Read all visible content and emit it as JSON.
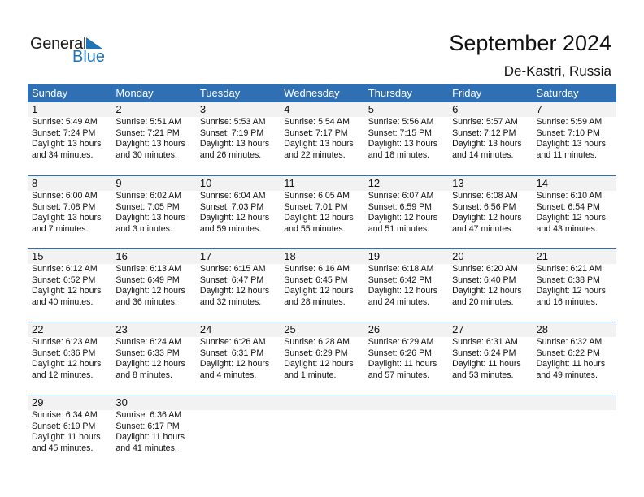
{
  "logo": {
    "line1": "General",
    "line2": "Blue"
  },
  "header": {
    "title": "September 2024",
    "location": "De-Kastri, Russia"
  },
  "colors": {
    "accent": "#2e70b3",
    "band": "#f2f2f2"
  },
  "weekdays": [
    "Sunday",
    "Monday",
    "Tuesday",
    "Wednesday",
    "Thursday",
    "Friday",
    "Saturday"
  ],
  "weeks": [
    [
      {
        "day": "1",
        "sunrise": "Sunrise: 5:49 AM",
        "sunset": "Sunset: 7:24 PM",
        "daylight1": "Daylight: 13 hours",
        "daylight2": "and 34 minutes."
      },
      {
        "day": "2",
        "sunrise": "Sunrise: 5:51 AM",
        "sunset": "Sunset: 7:21 PM",
        "daylight1": "Daylight: 13 hours",
        "daylight2": "and 30 minutes."
      },
      {
        "day": "3",
        "sunrise": "Sunrise: 5:53 AM",
        "sunset": "Sunset: 7:19 PM",
        "daylight1": "Daylight: 13 hours",
        "daylight2": "and 26 minutes."
      },
      {
        "day": "4",
        "sunrise": "Sunrise: 5:54 AM",
        "sunset": "Sunset: 7:17 PM",
        "daylight1": "Daylight: 13 hours",
        "daylight2": "and 22 minutes."
      },
      {
        "day": "5",
        "sunrise": "Sunrise: 5:56 AM",
        "sunset": "Sunset: 7:15 PM",
        "daylight1": "Daylight: 13 hours",
        "daylight2": "and 18 minutes."
      },
      {
        "day": "6",
        "sunrise": "Sunrise: 5:57 AM",
        "sunset": "Sunset: 7:12 PM",
        "daylight1": "Daylight: 13 hours",
        "daylight2": "and 14 minutes."
      },
      {
        "day": "7",
        "sunrise": "Sunrise: 5:59 AM",
        "sunset": "Sunset: 7:10 PM",
        "daylight1": "Daylight: 13 hours",
        "daylight2": "and 11 minutes."
      }
    ],
    [
      {
        "day": "8",
        "sunrise": "Sunrise: 6:00 AM",
        "sunset": "Sunset: 7:08 PM",
        "daylight1": "Daylight: 13 hours",
        "daylight2": "and 7 minutes."
      },
      {
        "day": "9",
        "sunrise": "Sunrise: 6:02 AM",
        "sunset": "Sunset: 7:05 PM",
        "daylight1": "Daylight: 13 hours",
        "daylight2": "and 3 minutes."
      },
      {
        "day": "10",
        "sunrise": "Sunrise: 6:04 AM",
        "sunset": "Sunset: 7:03 PM",
        "daylight1": "Daylight: 12 hours",
        "daylight2": "and 59 minutes."
      },
      {
        "day": "11",
        "sunrise": "Sunrise: 6:05 AM",
        "sunset": "Sunset: 7:01 PM",
        "daylight1": "Daylight: 12 hours",
        "daylight2": "and 55 minutes."
      },
      {
        "day": "12",
        "sunrise": "Sunrise: 6:07 AM",
        "sunset": "Sunset: 6:59 PM",
        "daylight1": "Daylight: 12 hours",
        "daylight2": "and 51 minutes."
      },
      {
        "day": "13",
        "sunrise": "Sunrise: 6:08 AM",
        "sunset": "Sunset: 6:56 PM",
        "daylight1": "Daylight: 12 hours",
        "daylight2": "and 47 minutes."
      },
      {
        "day": "14",
        "sunrise": "Sunrise: 6:10 AM",
        "sunset": "Sunset: 6:54 PM",
        "daylight1": "Daylight: 12 hours",
        "daylight2": "and 43 minutes."
      }
    ],
    [
      {
        "day": "15",
        "sunrise": "Sunrise: 6:12 AM",
        "sunset": "Sunset: 6:52 PM",
        "daylight1": "Daylight: 12 hours",
        "daylight2": "and 40 minutes."
      },
      {
        "day": "16",
        "sunrise": "Sunrise: 6:13 AM",
        "sunset": "Sunset: 6:49 PM",
        "daylight1": "Daylight: 12 hours",
        "daylight2": "and 36 minutes."
      },
      {
        "day": "17",
        "sunrise": "Sunrise: 6:15 AM",
        "sunset": "Sunset: 6:47 PM",
        "daylight1": "Daylight: 12 hours",
        "daylight2": "and 32 minutes."
      },
      {
        "day": "18",
        "sunrise": "Sunrise: 6:16 AM",
        "sunset": "Sunset: 6:45 PM",
        "daylight1": "Daylight: 12 hours",
        "daylight2": "and 28 minutes."
      },
      {
        "day": "19",
        "sunrise": "Sunrise: 6:18 AM",
        "sunset": "Sunset: 6:42 PM",
        "daylight1": "Daylight: 12 hours",
        "daylight2": "and 24 minutes."
      },
      {
        "day": "20",
        "sunrise": "Sunrise: 6:20 AM",
        "sunset": "Sunset: 6:40 PM",
        "daylight1": "Daylight: 12 hours",
        "daylight2": "and 20 minutes."
      },
      {
        "day": "21",
        "sunrise": "Sunrise: 6:21 AM",
        "sunset": "Sunset: 6:38 PM",
        "daylight1": "Daylight: 12 hours",
        "daylight2": "and 16 minutes."
      }
    ],
    [
      {
        "day": "22",
        "sunrise": "Sunrise: 6:23 AM",
        "sunset": "Sunset: 6:36 PM",
        "daylight1": "Daylight: 12 hours",
        "daylight2": "and 12 minutes."
      },
      {
        "day": "23",
        "sunrise": "Sunrise: 6:24 AM",
        "sunset": "Sunset: 6:33 PM",
        "daylight1": "Daylight: 12 hours",
        "daylight2": "and 8 minutes."
      },
      {
        "day": "24",
        "sunrise": "Sunrise: 6:26 AM",
        "sunset": "Sunset: 6:31 PM",
        "daylight1": "Daylight: 12 hours",
        "daylight2": "and 4 minutes."
      },
      {
        "day": "25",
        "sunrise": "Sunrise: 6:28 AM",
        "sunset": "Sunset: 6:29 PM",
        "daylight1": "Daylight: 12 hours",
        "daylight2": "and 1 minute."
      },
      {
        "day": "26",
        "sunrise": "Sunrise: 6:29 AM",
        "sunset": "Sunset: 6:26 PM",
        "daylight1": "Daylight: 11 hours",
        "daylight2": "and 57 minutes."
      },
      {
        "day": "27",
        "sunrise": "Sunrise: 6:31 AM",
        "sunset": "Sunset: 6:24 PM",
        "daylight1": "Daylight: 11 hours",
        "daylight2": "and 53 minutes."
      },
      {
        "day": "28",
        "sunrise": "Sunrise: 6:32 AM",
        "sunset": "Sunset: 6:22 PM",
        "daylight1": "Daylight: 11 hours",
        "daylight2": "and 49 minutes."
      }
    ],
    [
      {
        "day": "29",
        "sunrise": "Sunrise: 6:34 AM",
        "sunset": "Sunset: 6:19 PM",
        "daylight1": "Daylight: 11 hours",
        "daylight2": "and 45 minutes."
      },
      {
        "day": "30",
        "sunrise": "Sunrise: 6:36 AM",
        "sunset": "Sunset: 6:17 PM",
        "daylight1": "Daylight: 11 hours",
        "daylight2": "and 41 minutes."
      },
      null,
      null,
      null,
      null,
      null
    ]
  ]
}
